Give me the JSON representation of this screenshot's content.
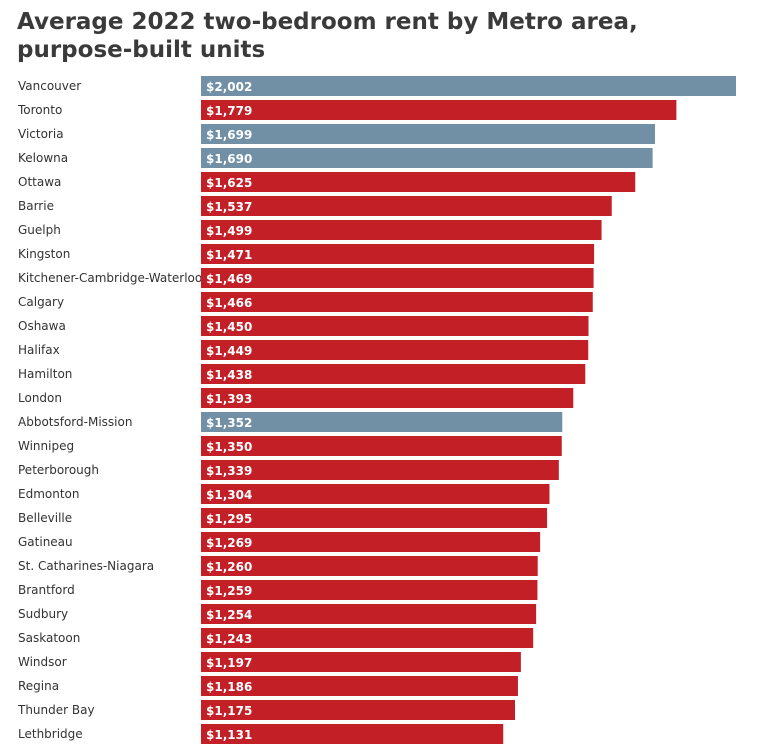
{
  "chart_data": {
    "type": "bar",
    "orientation": "horizontal",
    "title": "Average 2022 two-bedroom rent by Metro area, purpose-built units",
    "xlabel": "",
    "ylabel": "",
    "xlim": [
      0,
      2002
    ],
    "grid": false,
    "legend": "none",
    "value_prefix": "$",
    "colors": {
      "default": "#c21f26",
      "highlight": "#7190a6"
    },
    "categories": [
      "Vancouver",
      "Toronto",
      "Victoria",
      "Kelowna",
      "Ottawa",
      "Barrie",
      "Guelph",
      "Kingston",
      "Kitchener-Cambridge-Waterloo",
      "Calgary",
      "Oshawa",
      "Halifax",
      "Hamilton",
      "London",
      "Abbotsford-Mission",
      "Winnipeg",
      "Peterborough",
      "Edmonton",
      "Belleville",
      "Gatineau",
      "St. Catharines-Niagara",
      "Brantford",
      "Sudbury",
      "Saskatoon",
      "Windsor",
      "Regina",
      "Thunder Bay",
      "Lethbridge"
    ],
    "values": [
      2002,
      1779,
      1699,
      1690,
      1625,
      1537,
      1499,
      1471,
      1469,
      1466,
      1450,
      1449,
      1438,
      1393,
      1352,
      1350,
      1339,
      1304,
      1295,
      1269,
      1260,
      1259,
      1254,
      1243,
      1197,
      1186,
      1175,
      1131
    ],
    "value_labels": [
      "$2,002",
      "$1,779",
      "$1,699",
      "$1,690",
      "$1,625",
      "$1,537",
      "$1,499",
      "$1,471",
      "$1,469",
      "$1,466",
      "$1,450",
      "$1,449",
      "$1,438",
      "$1,393",
      "$1,352",
      "$1,350",
      "$1,339",
      "$1,304",
      "$1,295",
      "$1,269",
      "$1,260",
      "$1,259",
      "$1,254",
      "$1,243",
      "$1,197",
      "$1,186",
      "$1,175",
      "$1,131"
    ],
    "highlighted": [
      "Vancouver",
      "Victoria",
      "Kelowna",
      "Abbotsford-Mission"
    ]
  }
}
